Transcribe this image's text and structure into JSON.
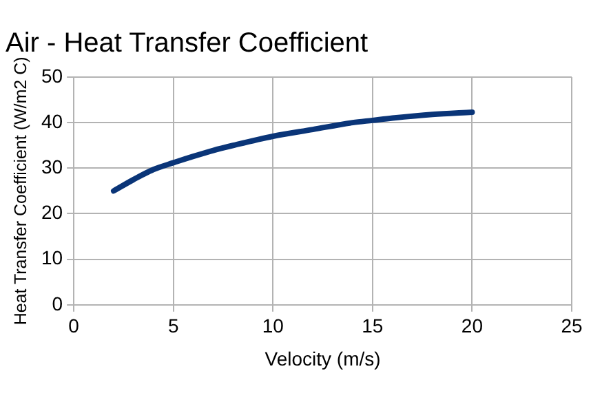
{
  "chart_data": {
    "type": "line",
    "title": "Air - Heat Transfer Coefficient",
    "xlabel": "Velocity (m/s)",
    "ylabel": "Heat Transfer Coefficient (W/m2 C)",
    "x": [
      2,
      3,
      4,
      5,
      6,
      7,
      8,
      10,
      12,
      14,
      15,
      16,
      18,
      20
    ],
    "series": [
      {
        "color": "#0a3578",
        "values": [
          25,
          27.5,
          29.7,
          31.2,
          32.6,
          33.9,
          35,
          37,
          38.5,
          40,
          40.5,
          41,
          41.8,
          42.3
        ]
      }
    ],
    "xlim": [
      0,
      25
    ],
    "xticks": [
      0,
      5,
      10,
      15,
      20,
      25
    ],
    "ylim": [
      0,
      50
    ],
    "yticks": [
      0,
      10,
      20,
      30,
      40,
      50
    ],
    "grid": true,
    "marker": "none",
    "line_style": "solid"
  }
}
